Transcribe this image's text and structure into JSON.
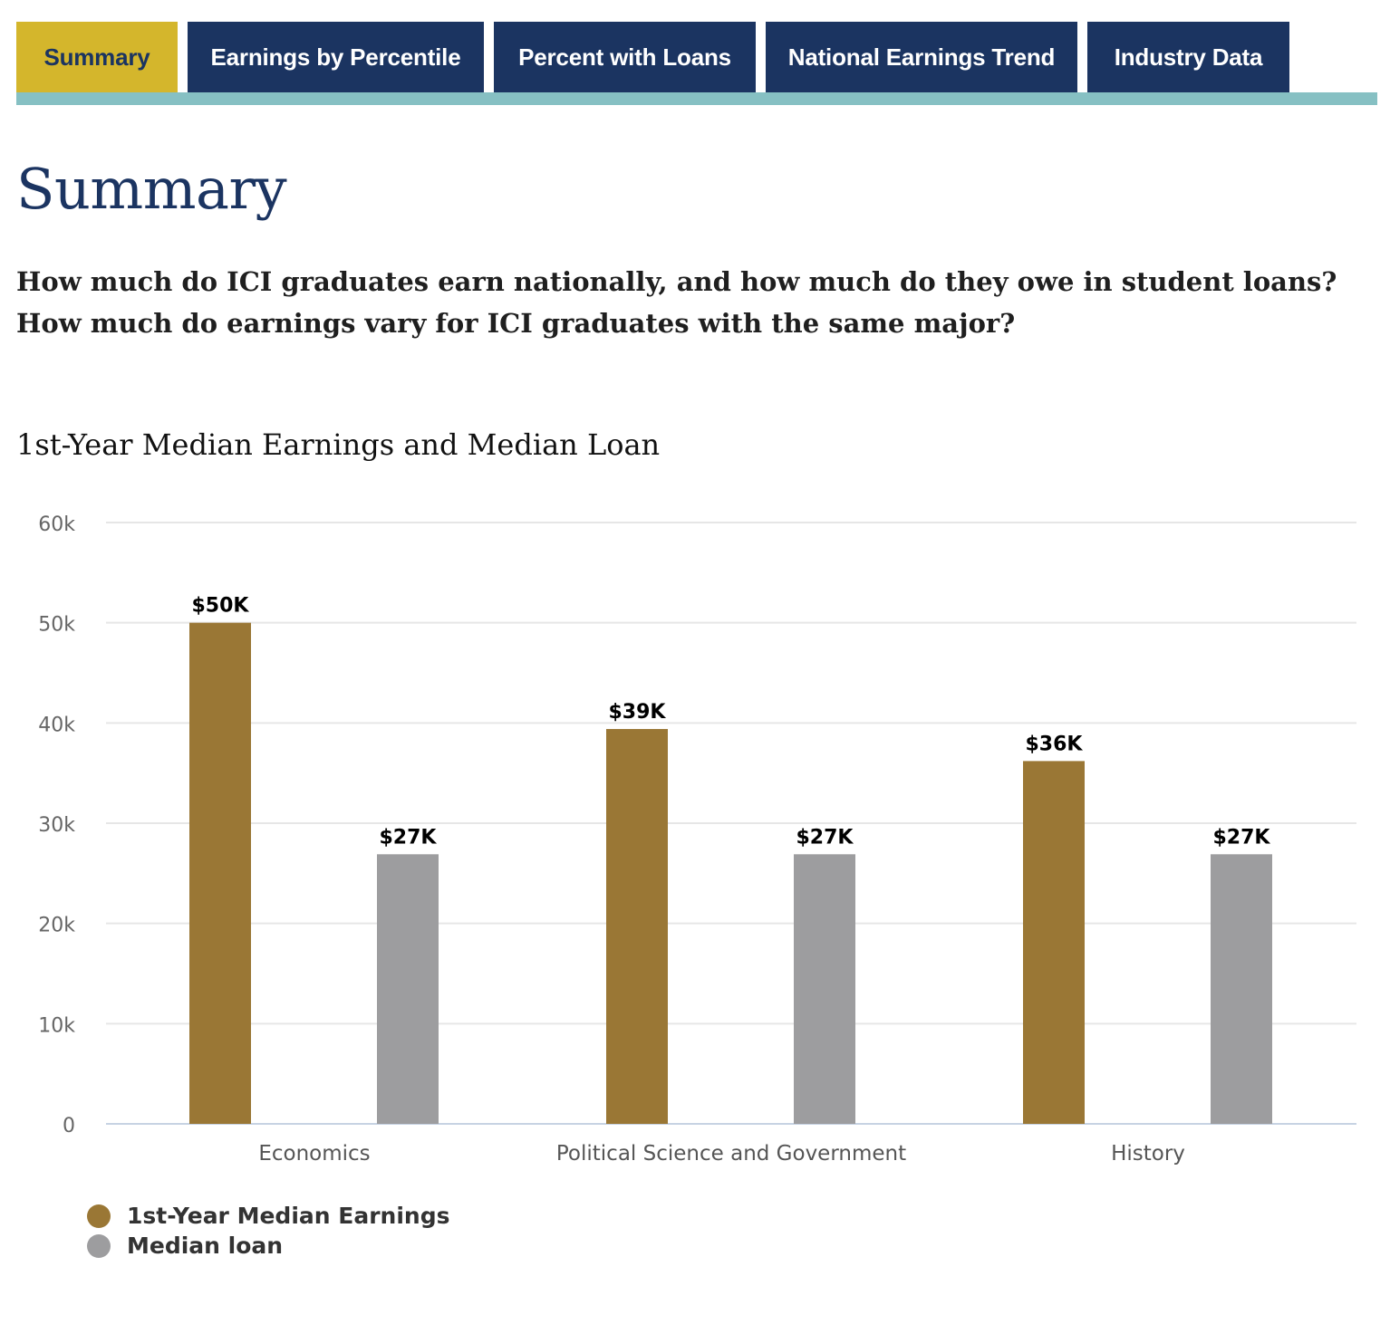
{
  "tabs": [
    {
      "label": "Summary",
      "active": true
    },
    {
      "label": "Earnings by Percentile",
      "active": false
    },
    {
      "label": "Percent with Loans",
      "active": false
    },
    {
      "label": "National Earnings Trend",
      "active": false
    },
    {
      "label": "Industry Data",
      "active": false
    }
  ],
  "page": {
    "title": "Summary",
    "intro_line1": "How much do ICI graduates earn nationally, and how much do they owe in student loans?",
    "intro_line2": "How much do earnings vary for ICI graduates with the same major?"
  },
  "colors": {
    "navy": "#1b3461",
    "gold": "#d4b62c",
    "teal": "#86c0c3",
    "earnings": "#9a7735",
    "loan": "#9d9d9f"
  },
  "chart_data": {
    "type": "bar",
    "title": "1st-Year Median Earnings and Median Loan",
    "categories": [
      "Economics",
      "Political Science and Government",
      "History"
    ],
    "series": [
      {
        "name": "1st-Year Median Earnings",
        "color": "#9a7735",
        "values": [
          50000,
          39400,
          36200
        ],
        "labels": [
          "$50K",
          "$39K",
          "$36K"
        ]
      },
      {
        "name": "Median loan",
        "color": "#9d9d9f",
        "values": [
          26900,
          26900,
          26900
        ],
        "labels": [
          "$27K",
          "$27K",
          "$27K"
        ]
      }
    ],
    "ylim": [
      0,
      60000
    ],
    "yticks": [
      0,
      10000,
      20000,
      30000,
      40000,
      50000,
      60000
    ],
    "ytick_labels": [
      "0",
      "10k",
      "20k",
      "30k",
      "40k",
      "50k",
      "60k"
    ],
    "grid": true,
    "legend": "bottom-left"
  }
}
